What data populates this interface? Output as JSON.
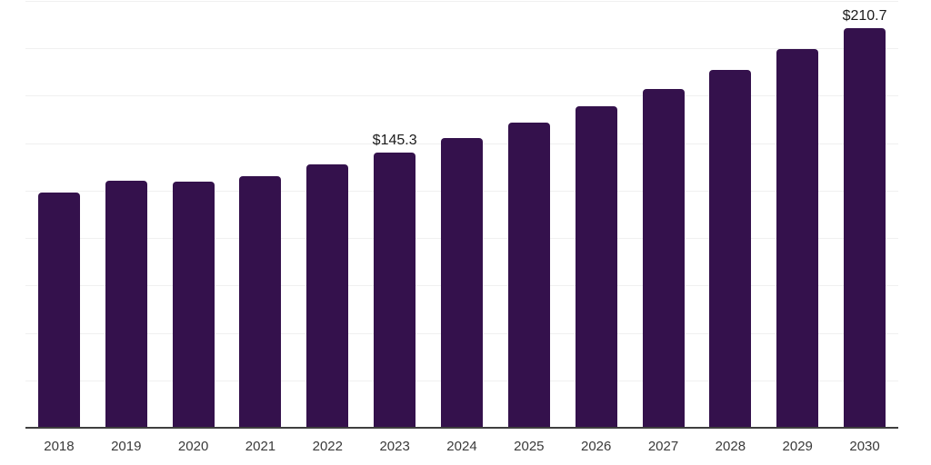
{
  "chart_data": {
    "type": "bar",
    "title": "",
    "xlabel": "",
    "ylabel": "",
    "categories": [
      "2018",
      "2019",
      "2020",
      "2021",
      "2022",
      "2023",
      "2024",
      "2025",
      "2026",
      "2027",
      "2028",
      "2029",
      "2030"
    ],
    "values": [
      124.0,
      130.2,
      129.9,
      132.5,
      138.7,
      145.3,
      152.6,
      160.7,
      169.5,
      178.7,
      188.7,
      199.7,
      210.7
    ],
    "data_labels": [
      {
        "index": 5,
        "category": "2023",
        "text": "$145.3"
      },
      {
        "index": 12,
        "category": "2030",
        "text": "$210.7"
      }
    ],
    "ylim": [
      0,
      225
    ],
    "gridline_interval": 25,
    "grid": "horizontal",
    "y_tick_labels_visible": false,
    "legend": "none",
    "colors": {
      "bar": "#34114C",
      "gridline": "#F0F0F0",
      "axis_line": "#3F3F3F",
      "tick_label": "#3A3A3A",
      "value_label": "#1B1B1B",
      "background": "#FFFFFF"
    }
  }
}
